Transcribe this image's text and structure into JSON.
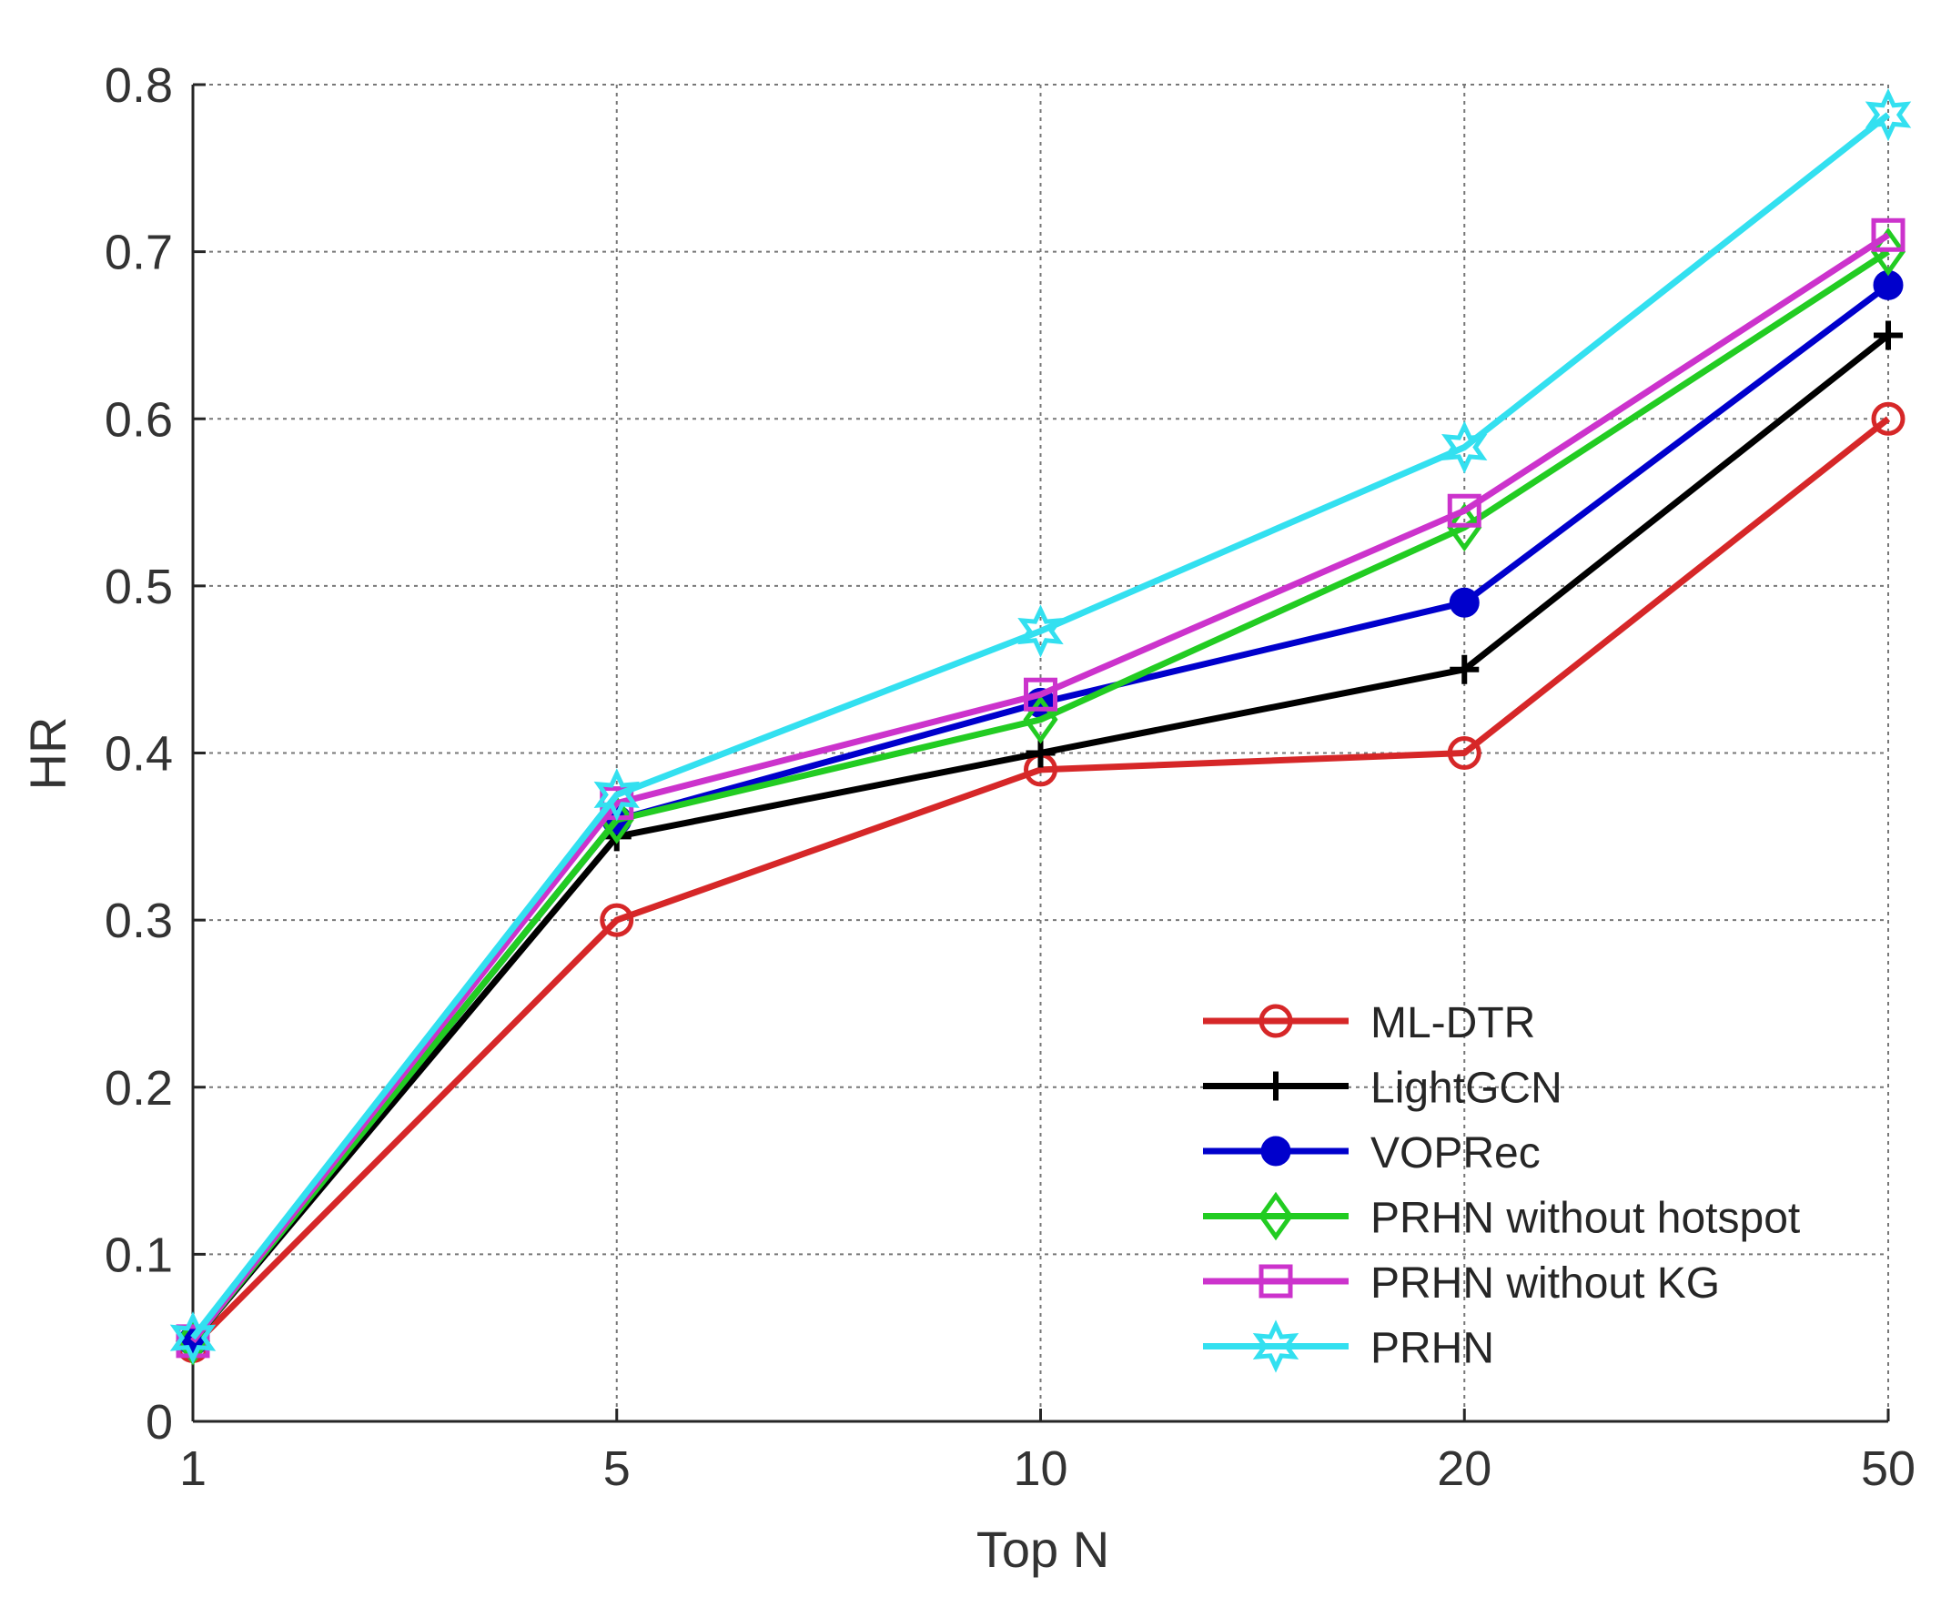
{
  "chart_data": {
    "type": "line",
    "title": "",
    "xlabel": "Top N",
    "ylabel": "HR",
    "categories": [
      "1",
      "5",
      "10",
      "20",
      "50"
    ],
    "ylim": [
      0,
      0.8
    ],
    "yticks": [
      "0",
      "0.1",
      "0.2",
      "0.3",
      "0.4",
      "0.5",
      "0.6",
      "0.7",
      "0.8"
    ],
    "grid": true,
    "legend_position": "bottom-right",
    "series": [
      {
        "name": "ML-DTR",
        "color": "#d62728",
        "marker": "circle",
        "values": [
          0.045,
          0.3,
          0.39,
          0.4,
          0.6
        ]
      },
      {
        "name": "LightGCN",
        "color": "#000000",
        "marker": "plus",
        "values": [
          0.048,
          0.35,
          0.4,
          0.45,
          0.65
        ]
      },
      {
        "name": "VOPRec",
        "color": "#0000cc",
        "marker": "dot",
        "values": [
          0.048,
          0.36,
          0.43,
          0.49,
          0.68
        ]
      },
      {
        "name": "PRHN without hotspot",
        "color": "#22cc22",
        "marker": "diamond",
        "values": [
          0.048,
          0.36,
          0.42,
          0.535,
          0.7
        ]
      },
      {
        "name": "PRHN without KG",
        "color": "#cc33cc",
        "marker": "square",
        "values": [
          0.048,
          0.37,
          0.435,
          0.545,
          0.71
        ]
      },
      {
        "name": "PRHN",
        "color": "#33e0f0",
        "marker": "hexagram",
        "values": [
          0.05,
          0.375,
          0.473,
          0.583,
          0.782
        ]
      }
    ]
  }
}
